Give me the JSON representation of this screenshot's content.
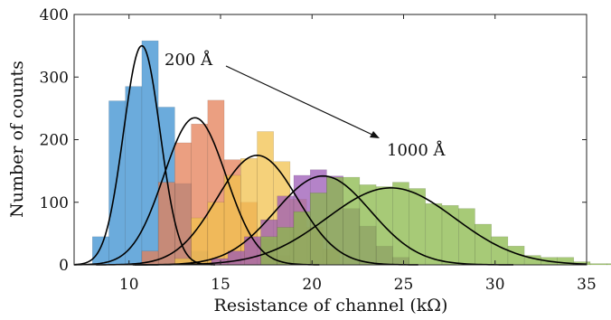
{
  "chart_data": {
    "type": "bar",
    "title": "",
    "xlabel": "Resistance of channel (kΩ)",
    "ylabel": "Number of counts",
    "xlim": [
      7,
      35
    ],
    "ylim": [
      0,
      400
    ],
    "xticks": [
      "10",
      "15",
      "20",
      "25",
      "30",
      "35"
    ],
    "yticks": [
      "0",
      "100",
      "200",
      "300",
      "400"
    ],
    "bin_width": 0.9,
    "grid": false,
    "legend": "none",
    "series": [
      {
        "color": "#3a8fd0",
        "start": 8.0,
        "values": [
          45,
          262,
          285,
          358,
          252,
          130,
          22
        ],
        "fit": {
          "peak": 350,
          "mean": 10.7,
          "sd": 1.0
        }
      },
      {
        "color": "#e47f57",
        "start": 10.7,
        "values": [
          22,
          132,
          195,
          225,
          263,
          168,
          100,
          42,
          15
        ],
        "fit": {
          "peak": 235,
          "mean": 13.6,
          "sd": 1.7
        }
      },
      {
        "color": "#f2c14e",
        "start": 12.5,
        "values": [
          10,
          75,
          100,
          143,
          170,
          213,
          165,
          105,
          60,
          25
        ],
        "fit": {
          "peak": 175,
          "mean": 17.0,
          "sd": 2.2
        }
      },
      {
        "color": "#9b59b6",
        "start": 14.5,
        "values": [
          10,
          22,
          45,
          72,
          110,
          143,
          152,
          142,
          90,
          62,
          30,
          12
        ],
        "fit": {
          "peak": 142,
          "mean": 20.6,
          "sd": 2.6
        }
      },
      {
        "color": "#8ab84a",
        "start": 17.2,
        "values": [
          45,
          60,
          85,
          115,
          140,
          140,
          128,
          125,
          132,
          122,
          98,
          95,
          90,
          65,
          45,
          30,
          15,
          12,
          12,
          5,
          2,
          2
        ],
        "fit": {
          "peak": 123,
          "mean": 24.3,
          "sd": 3.5
        }
      }
    ],
    "annotations": {
      "start_label": "200 Å",
      "end_label": "1000 Å"
    }
  }
}
